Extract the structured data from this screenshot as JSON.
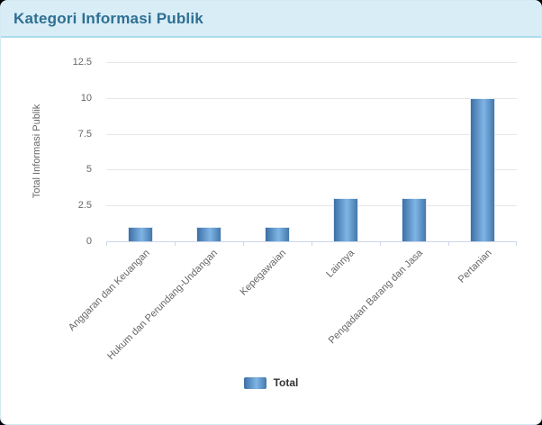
{
  "header": {
    "title": "Kategori Informasi Publik"
  },
  "colors": {
    "card_border": "#d3eaf4",
    "header_bg": "#d9edf7",
    "header_text": "#2e6f92",
    "header_border": "#abdcee",
    "grid": "#e6e6e6",
    "axis": "#ccd6eb",
    "tick_label": "#666666",
    "legend_text": "#333333",
    "bar_dark": "#3d6fa5",
    "bar_light": "#7fb5e5",
    "bar_mid": "#4478ac"
  },
  "chart_data": {
    "type": "bar",
    "title": "Kategori Informasi Publik",
    "categories": [
      "Anggaran dan Keuangan",
      "Hukum dan Perundang-Undangan",
      "Kepegawaian",
      "Lainnya",
      "Pengadaan Barang dan Jasa",
      "Pertanian"
    ],
    "series": [
      {
        "name": "Total",
        "values": [
          1,
          1,
          1,
          3,
          3,
          10
        ]
      }
    ],
    "xlabel": "",
    "ylabel": "Total Informasi Publik",
    "ylim": [
      0,
      12.5
    ],
    "yticks": [
      0,
      2.5,
      5,
      7.5,
      10,
      12.5
    ],
    "grid": true,
    "legend_position": "bottom"
  }
}
